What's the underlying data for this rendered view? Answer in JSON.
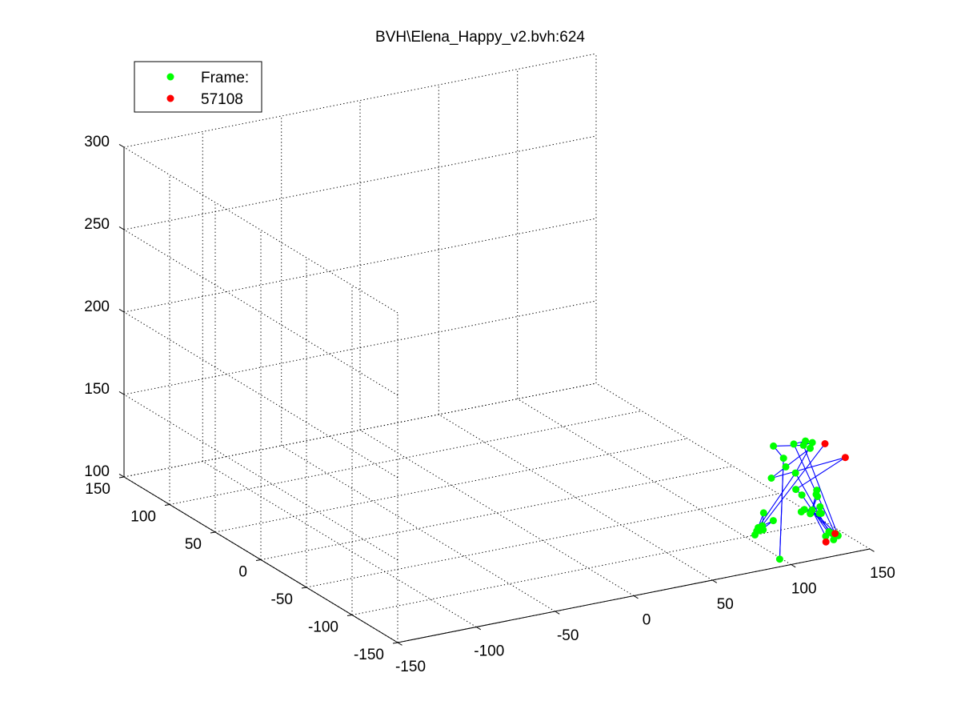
{
  "window": {
    "title": "BVH\\Elena_Happy_v2.bvh:624"
  },
  "chart_data": {
    "type": "scatter",
    "title": "BVH\\Elena_Happy_v2.bvh:624",
    "projection": "3d",
    "grid": true,
    "legend_placement": "top-left",
    "colors": {
      "joints": "#00ff00",
      "end_sites": "#ff0000",
      "bones": "#0000ff",
      "grid": "#000000",
      "axes": "#000000"
    },
    "legend": [
      {
        "label": "Frame:",
        "color": "#00ff00",
        "marker": "dot"
      },
      {
        "label": "57108",
        "color": "#ff0000",
        "marker": "dot"
      }
    ],
    "xlim": [
      -150,
      150
    ],
    "ylim": [
      -150,
      150
    ],
    "zlim": [
      100,
      300
    ],
    "x_ticks": [
      "-150",
      "-100",
      "-50",
      "0",
      "50",
      "100",
      "150"
    ],
    "y_ticks": [
      "-150",
      "-100",
      "-50",
      "0",
      "50",
      "100",
      "150"
    ],
    "z_ticks": [
      "100",
      "150",
      "200",
      "250",
      "300"
    ],
    "joints": [
      [
        114,
        -149,
        171
      ],
      [
        109,
        -148,
        170
      ],
      [
        112,
        -145,
        171
      ],
      [
        104,
        -146,
        171
      ],
      [
        115,
        -145,
        166
      ],
      [
        94,
        -141,
        170
      ],
      [
        101,
        -140,
        161
      ],
      [
        103,
        -139,
        155
      ],
      [
        108,
        -141,
        151
      ],
      [
        95,
        -137,
        149
      ],
      [
        103,
        -150,
        145
      ],
      [
        108,
        -148,
        140
      ],
      [
        86,
        -138,
        121
      ],
      [
        87,
        -138,
        119
      ],
      [
        88,
        -140,
        120
      ],
      [
        84,
        -140,
        120
      ],
      [
        86,
        -144,
        132
      ],
      [
        87,
        -141,
        123
      ],
      [
        91,
        -146,
        127
      ],
      [
        84,
        -138,
        117
      ],
      [
        91,
        -153,
        106
      ],
      [
        118,
        -142,
        127
      ],
      [
        123,
        -142,
        128
      ],
      [
        116,
        -137,
        126
      ],
      [
        114,
        -137,
        125
      ],
      [
        125,
        -140,
        123
      ],
      [
        132,
        -126,
        117
      ],
      [
        126,
        -134,
        131
      ],
      [
        122,
        -133,
        121
      ],
      [
        127,
        -150,
        110
      ],
      [
        122,
        -150,
        113
      ],
      [
        126,
        -150,
        114
      ],
      [
        129,
        -149,
        113
      ],
      [
        132,
        -123,
        130
      ],
      [
        131,
        -124,
        128
      ],
      [
        131,
        -138,
        110
      ],
      [
        131,
        -148,
        111
      ]
    ],
    "end_sites": [
      [
        114,
        -163,
        175
      ],
      [
        135,
        -149,
        158
      ],
      [
        143,
        -124,
        102
      ],
      [
        132,
        -133,
        102
      ]
    ],
    "bones": [
      [
        0,
        1
      ],
      [
        1,
        2
      ],
      [
        2,
        3
      ],
      [
        1,
        36
      ],
      [
        3,
        39
      ],
      [
        1,
        5
      ],
      [
        5,
        6
      ],
      [
        6,
        20
      ],
      [
        6,
        20
      ],
      [
        0,
        4
      ],
      [
        4,
        7
      ],
      [
        7,
        9
      ],
      [
        9,
        38
      ],
      [
        38,
        10
      ],
      [
        10,
        11
      ],
      [
        11,
        21
      ],
      [
        21,
        22
      ],
      [
        21,
        23
      ],
      [
        21,
        24
      ],
      [
        21,
        25
      ],
      [
        21,
        26
      ],
      [
        21,
        27
      ],
      [
        21,
        28
      ],
      [
        21,
        29
      ],
      [
        21,
        30
      ],
      [
        21,
        31
      ],
      [
        21,
        32
      ],
      [
        21,
        33
      ],
      [
        21,
        34
      ],
      [
        0,
        8
      ],
      [
        8,
        12
      ],
      [
        12,
        13
      ],
      [
        13,
        14
      ],
      [
        14,
        15
      ],
      [
        15,
        16
      ],
      [
        16,
        17
      ],
      [
        17,
        18
      ],
      [
        18,
        19
      ],
      [
        19,
        37
      ],
      [
        8,
        35
      ],
      [
        35,
        40
      ]
    ]
  }
}
